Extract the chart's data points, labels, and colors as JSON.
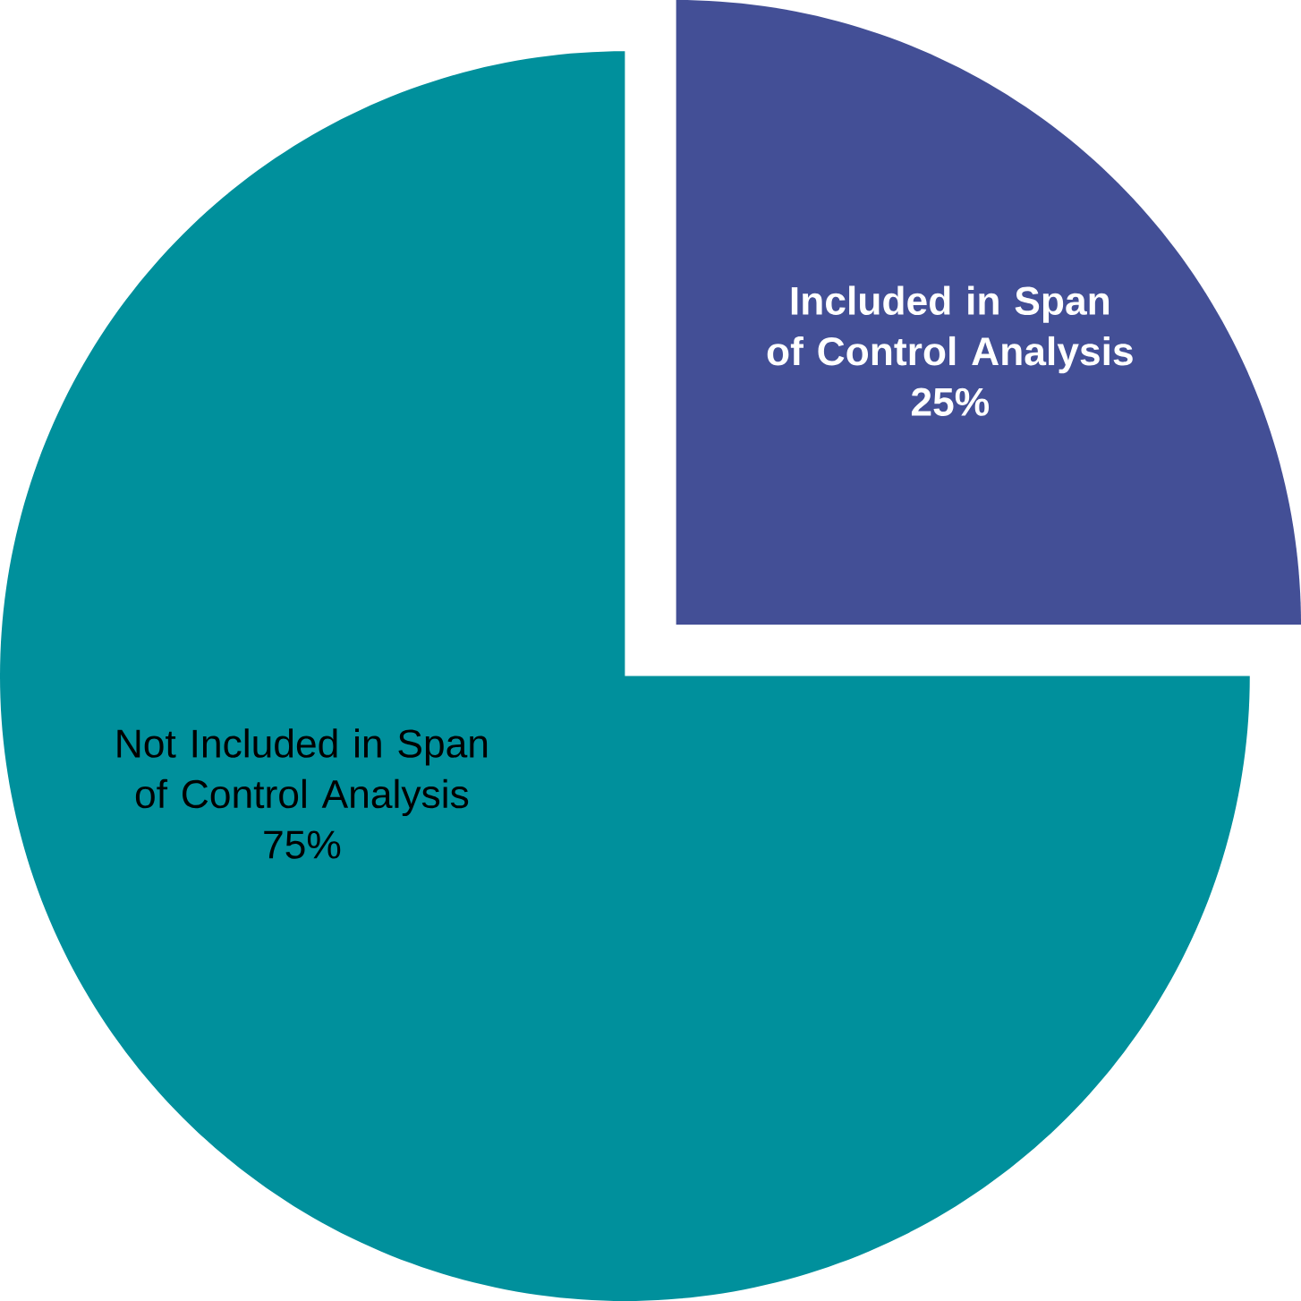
{
  "chart_data": {
    "type": "pie",
    "categories": [
      "Included in Span of Control Analysis",
      "Not Included in Span of Control Analysis"
    ],
    "values": [
      25,
      75
    ],
    "value_labels": [
      "25%",
      "75%"
    ],
    "colors": [
      "#434f96",
      "#00909c"
    ]
  }
}
